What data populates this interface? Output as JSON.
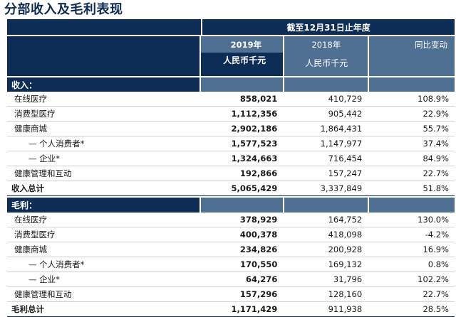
{
  "title": "分部收入及毛利表现",
  "header": {
    "period": "截至12月31日止年度",
    "col_2019": "2019年",
    "col_2018": "2018年",
    "col_change": "同比变动",
    "unit_2019": "人民币千元",
    "unit_2018": "人民币千元"
  },
  "revenue": {
    "heading": "收入：",
    "rows": [
      {
        "label": "在线医疗",
        "y2019": "858,021",
        "y2018": "410,729",
        "change": "108.9%"
      },
      {
        "label": "消费型医疗",
        "y2019": "1,112,356",
        "y2018": "905,442",
        "change": "22.9%"
      },
      {
        "label": "健康商城",
        "y2019": "2,902,186",
        "y2018": "1,864,431",
        "change": "55.7%"
      },
      {
        "label": "个人消费者*",
        "y2019": "1,577,523",
        "y2018": "1,147,977",
        "change": "37.4%"
      },
      {
        "label": "企业*",
        "y2019": "1,324,663",
        "y2018": "716,454",
        "change": "84.9%"
      },
      {
        "label": "健康管理和互动",
        "y2019": "192,866",
        "y2018": "157,247",
        "change": "22.7%"
      }
    ],
    "total": {
      "label": "收入总计",
      "y2019": "5,065,429",
      "y2018": "3,337,849",
      "change": "51.8%"
    }
  },
  "gross_profit": {
    "heading": "毛利：",
    "rows": [
      {
        "label": "在线医疗",
        "y2019": "378,929",
        "y2018": "164,752",
        "change": "130.0%"
      },
      {
        "label": "消费型医疗",
        "y2019": "400,378",
        "y2018": "418,098",
        "change": "-4.2%"
      },
      {
        "label": "健康商城",
        "y2019": "234,826",
        "y2018": "200,928",
        "change": "16.9%"
      },
      {
        "label": "个人消费者*",
        "y2019": "170,550",
        "y2018": "169,132",
        "change": "0.8%"
      },
      {
        "label": "企业*",
        "y2019": "64,276",
        "y2018": "31,796",
        "change": "102.2%"
      },
      {
        "label": "健康管理和互动",
        "y2019": "157,296",
        "y2018": "128,160",
        "change": "22.7%"
      }
    ],
    "total": {
      "label": "毛利总计",
      "y2019": "1,171,429",
      "y2018": "911,938",
      "change": "28.5%"
    }
  }
}
